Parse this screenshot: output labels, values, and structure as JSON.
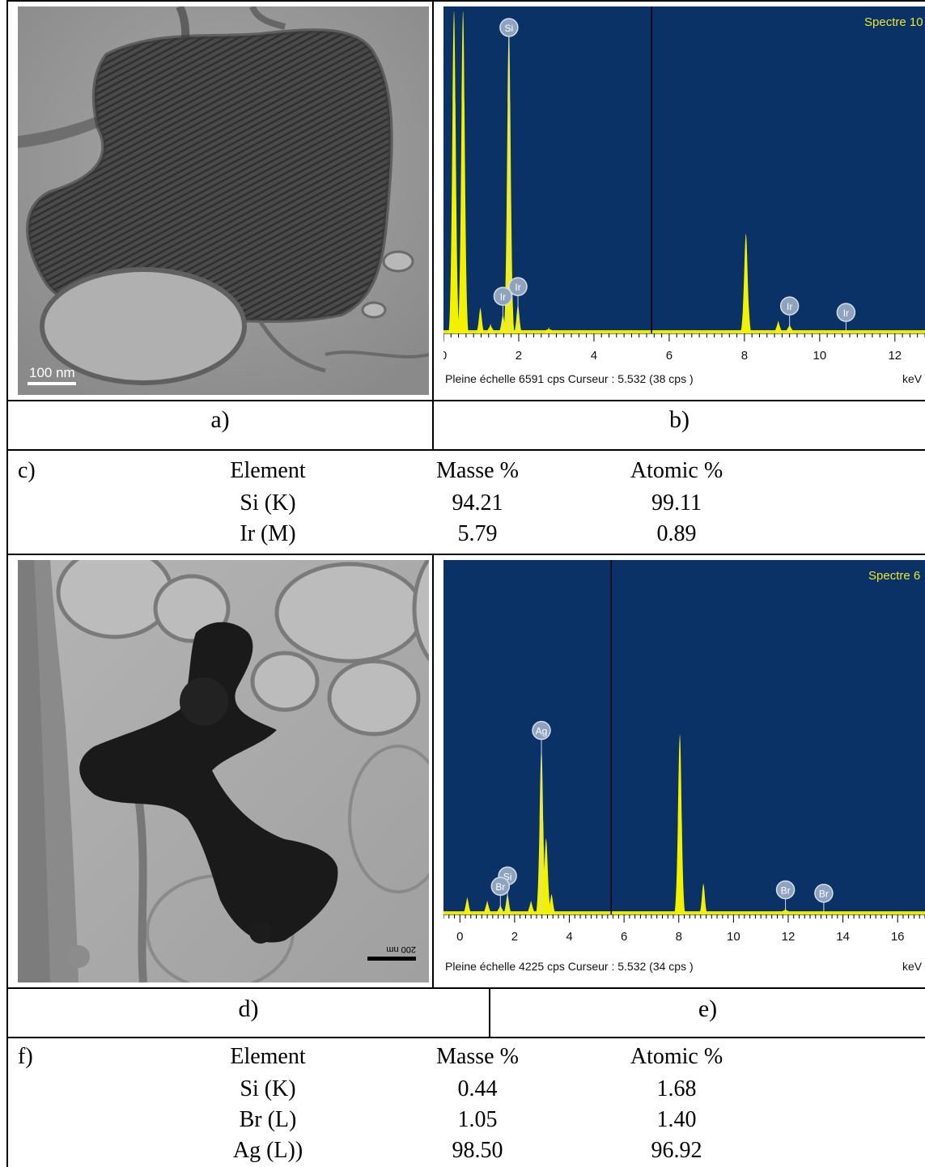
{
  "figure": {
    "panel_a": {
      "label": "a)",
      "scale_bar": "100 nm"
    },
    "panel_b": {
      "label": "b)",
      "spectrum_title": "Spectre 10",
      "footer_left": "Pleine échelle 6591 cps  Curseur : 5.532  (38 cps )",
      "footer_unit": "keV",
      "peak_labels": [
        "Si",
        "Ir",
        "Ir",
        "Ir",
        "Ir"
      ]
    },
    "panel_c": {
      "label": "c)",
      "headers": [
        "Element",
        "Masse %",
        "Atomic %"
      ],
      "rows": [
        {
          "element": "Si (K)",
          "mass": "94.21",
          "atomic": "99.11"
        },
        {
          "element": "Ir (M)",
          "mass": "5.79",
          "atomic": "0.89"
        }
      ]
    },
    "panel_d": {
      "label": "d)",
      "scale_bar": "200 nm"
    },
    "panel_e": {
      "label": "e)",
      "spectrum_title": "Spectre 6",
      "footer_left": "Pleine échelle 4225 cps  Curseur : 5.532  (34 cps )",
      "footer_unit": "keV",
      "peak_labels": [
        "Ag",
        "Si",
        "Br",
        "Br",
        "Br"
      ]
    },
    "panel_f": {
      "label": "f)",
      "headers": [
        "Element",
        "Masse %",
        "Atomic %"
      ],
      "rows": [
        {
          "element": "Si (K)",
          "mass": "0.44",
          "atomic": "1.68"
        },
        {
          "element": "Br (L)",
          "mass": "1.05",
          "atomic": "1.40"
        },
        {
          "element": "Ag (L))",
          "mass": "98.50",
          "atomic": "96.92"
        }
      ]
    }
  },
  "chart_data": [
    {
      "type": "line",
      "title": "Spectre 10",
      "xlabel": "keV",
      "xlim": [
        0,
        12.8
      ],
      "x_ticks": [
        0,
        2,
        4,
        6,
        8,
        10,
        12
      ],
      "cursor_x": 5.532,
      "series": [
        {
          "values": [
            [
              0.28,
              1.0
            ],
            [
              0.52,
              1.0
            ],
            [
              0.98,
              0.08
            ],
            [
              1.25,
              0.03
            ],
            [
              1.58,
              0.06
            ],
            [
              1.74,
              0.95
            ],
            [
              1.98,
              0.09
            ],
            [
              2.8,
              0.02
            ],
            [
              8.04,
              0.31
            ],
            [
              8.9,
              0.04
            ],
            [
              9.2,
              0.03
            ],
            [
              10.7,
              0.01
            ]
          ]
        }
      ],
      "annotations": [
        {
          "label": "Si",
          "x": 1.74
        },
        {
          "label": "Ir",
          "x": 1.58
        },
        {
          "label": "Ir",
          "x": 1.98
        },
        {
          "label": "Ir",
          "x": 9.2
        },
        {
          "label": "Ir",
          "x": 10.7
        }
      ]
    },
    {
      "type": "line",
      "title": "Spectre 6",
      "xlabel": "keV",
      "xlim": [
        -0.6,
        17.0
      ],
      "x_ticks": [
        0,
        2,
        4,
        6,
        8,
        10,
        12,
        14,
        16
      ],
      "cursor_x": 5.532,
      "series": [
        {
          "values": [
            [
              0.27,
              0.05
            ],
            [
              1.0,
              0.04
            ],
            [
              1.48,
              0.03
            ],
            [
              1.74,
              0.06
            ],
            [
              2.6,
              0.04
            ],
            [
              2.98,
              0.48
            ],
            [
              3.15,
              0.22
            ],
            [
              3.35,
              0.06
            ],
            [
              8.04,
              0.52
            ],
            [
              8.9,
              0.09
            ],
            [
              11.9,
              0.02
            ],
            [
              13.3,
              0.01
            ]
          ]
        }
      ],
      "annotations": [
        {
          "label": "Ag",
          "x": 2.98
        },
        {
          "label": "Si",
          "x": 1.74
        },
        {
          "label": "Br",
          "x": 1.48
        },
        {
          "label": "Br",
          "x": 11.9
        },
        {
          "label": "Br",
          "x": 13.3
        }
      ]
    }
  ]
}
